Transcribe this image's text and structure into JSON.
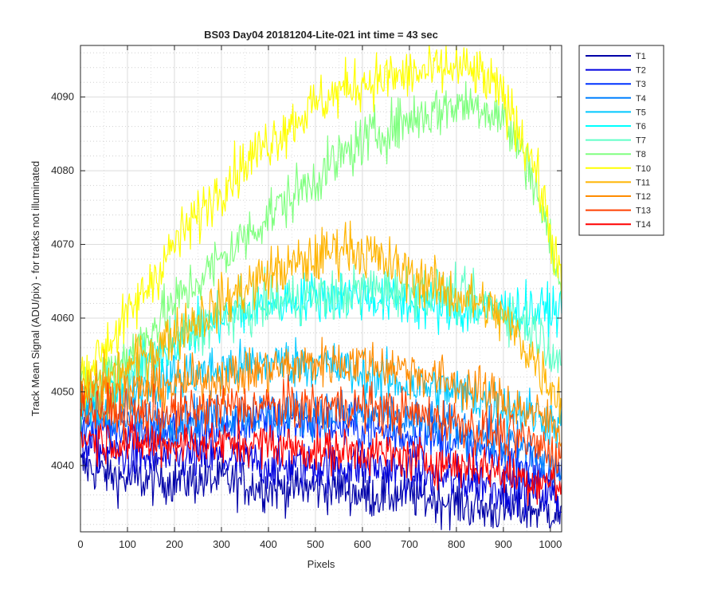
{
  "chart_data": {
    "type": "line",
    "title": "BS03 Day04 20181204-Lite-021 int time = 43 sec",
    "xlabel": "Pixels",
    "ylabel": "Track Mean Signal (ADU/pix) - for tracks not illuminated",
    "xlim": [
      0,
      1024
    ],
    "ylim": [
      4031,
      4097
    ],
    "xticks": [
      0,
      100,
      200,
      300,
      400,
      500,
      600,
      700,
      800,
      900,
      1000
    ],
    "yticks": [
      4040,
      4050,
      4060,
      4070,
      4080,
      4090
    ],
    "grid": true,
    "minor_grid": true,
    "legend_position": "outside-top-right",
    "x": [
      0,
      100,
      200,
      300,
      400,
      500,
      560,
      600,
      700,
      800,
      850,
      900,
      960,
      1000,
      1024
    ],
    "series": [
      {
        "name": "T1",
        "color": "#0000a8",
        "values": [
          4040,
          4038,
          4038,
          4038,
          4037,
          4037,
          4037,
          4036,
          4036,
          4035,
          4034,
          4034,
          4034,
          4034,
          4033
        ],
        "noise": 1.6
      },
      {
        "name": "T2",
        "color": "#0000e0",
        "values": [
          4043,
          4041,
          4041,
          4041,
          4040,
          4040,
          4040,
          4040,
          4039,
          4038,
          4038,
          4037,
          4037,
          4036,
          4035
        ],
        "noise": 1.6
      },
      {
        "name": "T3",
        "color": "#0033ff",
        "values": [
          4046,
          4045,
          4045,
          4045,
          4046,
          4046,
          4045,
          4045,
          4044,
          4043,
          4042,
          4041,
          4040,
          4039,
          4038
        ],
        "noise": 1.6
      },
      {
        "name": "T4",
        "color": "#0080ff",
        "values": [
          4047,
          4046,
          4046,
          4047,
          4047,
          4047,
          4047,
          4047,
          4046,
          4045,
          4044,
          4043,
          4042,
          4040,
          4039
        ],
        "noise": 1.6
      },
      {
        "name": "T5",
        "color": "#00c8ff",
        "values": [
          4047,
          4050,
          4052,
          4053,
          4054,
          4054,
          4053,
          4052,
          4051,
          4050,
          4049,
          4048,
          4047,
          4046,
          4045
        ],
        "noise": 1.7
      },
      {
        "name": "T6",
        "color": "#00ffff",
        "values": [
          4048,
          4052,
          4057,
          4060,
          4062,
          4063,
          4063,
          4063,
          4062,
          4061,
          4061,
          4061,
          4061,
          4061,
          4061
        ],
        "noise": 1.7
      },
      {
        "name": "T7",
        "color": "#60ffc8",
        "values": [
          4048,
          4052,
          4057,
          4060,
          4062,
          4063,
          4063,
          4064,
          4064,
          4063,
          4062,
          4061,
          4059,
          4056,
          4054
        ],
        "noise": 1.7
      },
      {
        "name": "T8",
        "color": "#80ff80",
        "values": [
          4050,
          4055,
          4062,
          4068,
          4074,
          4079,
          4082,
          4084,
          4087,
          4089,
          4089,
          4087,
          4080,
          4070,
          4063
        ],
        "noise": 1.8
      },
      {
        "name": "T10",
        "color": "#ffff00",
        "values": [
          4052,
          4060,
          4070,
          4078,
          4084,
          4089,
          4091,
          4092,
          4093,
          4094,
          4093,
          4090,
          4082,
          4072,
          4064
        ],
        "noise": 1.8
      },
      {
        "name": "T11",
        "color": "#ffb400",
        "values": [
          4050,
          4053,
          4058,
          4062,
          4066,
          4068,
          4070,
          4069,
          4066,
          4063,
          4062,
          4060,
          4055,
          4051,
          4049
        ],
        "noise": 1.8
      },
      {
        "name": "T12",
        "color": "#ff8c00",
        "values": [
          4050,
          4050,
          4051,
          4052,
          4053,
          4054,
          4054,
          4054,
          4053,
          4051,
          4050,
          4049,
          4047,
          4046,
          4045
        ],
        "noise": 1.6
      },
      {
        "name": "T13",
        "color": "#ff4000",
        "values": [
          4048,
          4047,
          4047,
          4048,
          4048,
          4048,
          4048,
          4048,
          4047,
          4046,
          4045,
          4044,
          4043,
          4042,
          4041
        ],
        "noise": 1.6
      },
      {
        "name": "T14",
        "color": "#ff0000",
        "values": [
          4044,
          4043,
          4043,
          4043,
          4043,
          4042,
          4042,
          4042,
          4041,
          4040,
          4040,
          4039,
          4038,
          4038,
          4037
        ],
        "noise": 1.5
      }
    ]
  }
}
